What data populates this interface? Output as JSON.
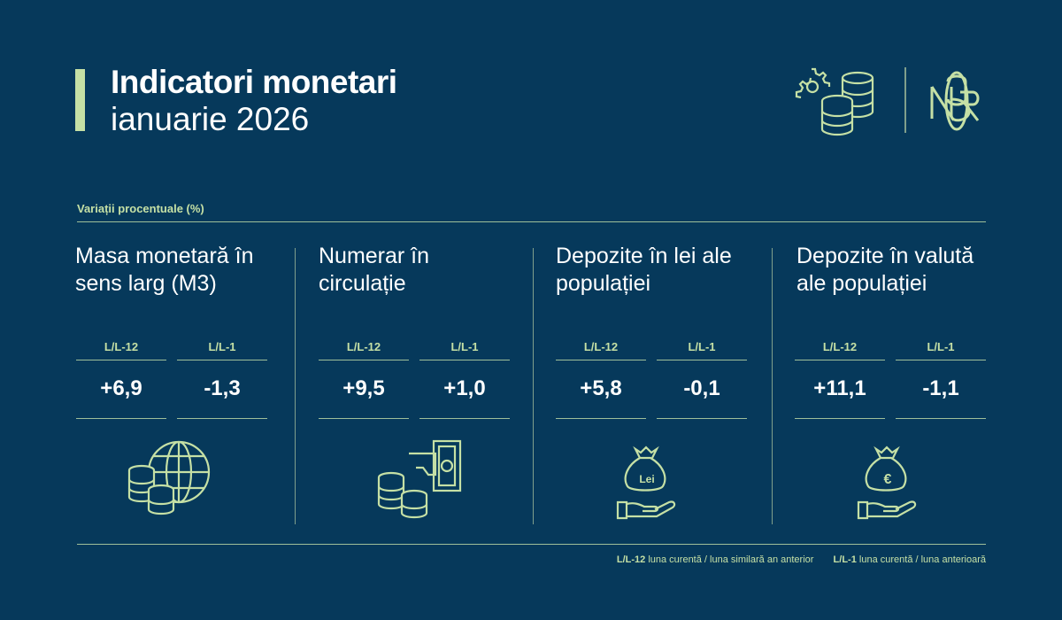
{
  "header": {
    "title": "Indicatori monetari",
    "subtitle": "ianuarie 2026"
  },
  "section_label": "Variații procentuale (%)",
  "columns": [
    {
      "title": "Masa monetară în sens larg (M3)",
      "m1_label": "L/L-12",
      "m1_value": "+6,9",
      "m2_label": "L/L-1",
      "m2_value": "-1,3",
      "icon": "coins-globe-icon"
    },
    {
      "title": "Numerar în circulație",
      "m1_label": "L/L-12",
      "m1_value": "+9,5",
      "m2_label": "L/L-1",
      "m2_value": "+1,0",
      "icon": "cash-hand-coins-icon"
    },
    {
      "title": "Depozite în lei ale populației",
      "m1_label": "L/L-12",
      "m1_value": "+5,8",
      "m2_label": "L/L-1",
      "m2_value": "-0,1",
      "icon": "money-bag-lei-icon",
      "bag_text": "Lei"
    },
    {
      "title": "Depozite în valută ale populației",
      "m1_label": "L/L-12",
      "m1_value": "+11,1",
      "m2_label": "L/L-1",
      "m2_value": "-1,1",
      "icon": "money-bag-euro-icon",
      "bag_text": "€"
    }
  ],
  "footer": {
    "l12": "L/L-12",
    "l12_desc": "luna curentă / luna similară an anterior",
    "l1": "L/L-1",
    "l1_desc": "luna curentă / luna anterioară"
  },
  "logo_text": "BNR",
  "colors": {
    "background": "#06395b",
    "accent": "#c5e0a5"
  }
}
